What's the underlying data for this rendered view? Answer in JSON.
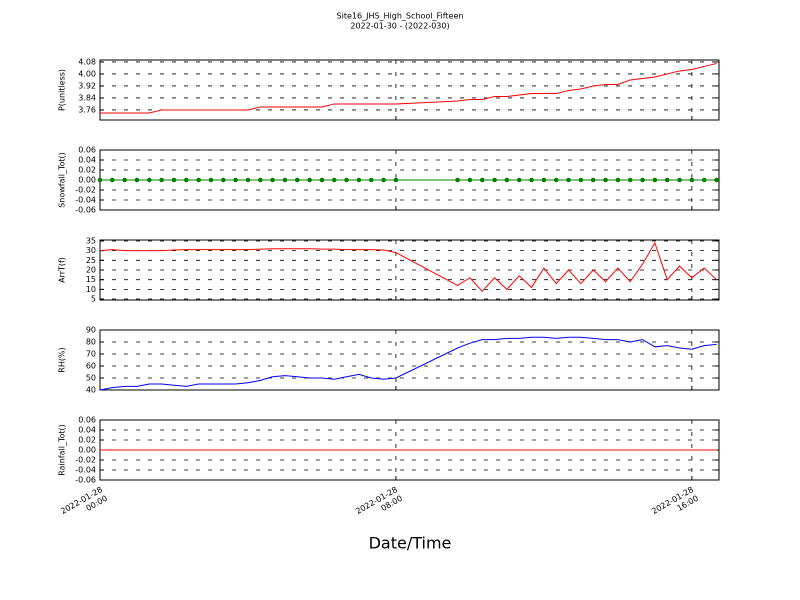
{
  "chart_data": {
    "type": "multi-panel",
    "title": "Site16_JHS_High_School_Fifteen",
    "subtitle": "2022-01-30 - (2022-030)",
    "xlabel": "Date/Time",
    "x": [
      "2022-01-28 00:00",
      "2022-01-28 00:20",
      "2022-01-28 00:40",
      "2022-01-28 01:00",
      "2022-01-28 01:20",
      "2022-01-28 01:40",
      "2022-01-28 02:00",
      "2022-01-28 02:20",
      "2022-01-28 02:40",
      "2022-01-28 03:00",
      "2022-01-28 03:20",
      "2022-01-28 03:40",
      "2022-01-28 04:00",
      "2022-01-28 04:20",
      "2022-01-28 04:40",
      "2022-01-28 05:00",
      "2022-01-28 05:20",
      "2022-01-28 05:40",
      "2022-01-28 06:00",
      "2022-01-28 06:20",
      "2022-01-28 06:40",
      "2022-01-28 07:00",
      "2022-01-28 07:20",
      "2022-01-28 07:40",
      "2022-01-28 08:00",
      "2022-01-28 09:40",
      "2022-01-28 10:00",
      "2022-01-28 10:20",
      "2022-01-28 10:40",
      "2022-01-28 11:00",
      "2022-01-28 11:20",
      "2022-01-28 11:40",
      "2022-01-28 12:00",
      "2022-01-28 12:20",
      "2022-01-28 12:40",
      "2022-01-28 13:00",
      "2022-01-28 13:20",
      "2022-01-28 13:40",
      "2022-01-28 14:00",
      "2022-01-28 14:20",
      "2022-01-28 14:40",
      "2022-01-28 15:00",
      "2022-01-28 15:20",
      "2022-01-28 15:40",
      "2022-01-28 16:00",
      "2022-01-28 16:20",
      "2022-01-28 16:40"
    ],
    "xlim": [
      "2022-01-28 00:00",
      "2022-01-28 16:44"
    ],
    "xticks": [
      {
        "value": "2022-01-28 00:00",
        "label": "2022-01-28\n00:00"
      },
      {
        "value": "2022-01-28 08:00",
        "label": "2022-01-28\n08:00"
      },
      {
        "value": "2022-01-28 16:00",
        "label": "2022-01-28\n16:00"
      }
    ],
    "grid": true,
    "subplots": [
      {
        "type": "line",
        "ylabel": "P(unitless)",
        "color": "#ff0000",
        "marker": false,
        "ylim": [
          3.693,
          4.093
        ],
        "yticks": [
          3.76,
          3.84,
          3.92,
          {
            "value": 4,
            "label": "4.00"
          },
          4.08
        ],
        "values": [
          3.74,
          3.74,
          3.74,
          3.74,
          3.74,
          3.76,
          3.76,
          3.76,
          3.76,
          3.76,
          3.76,
          3.76,
          3.76,
          3.78,
          3.78,
          3.78,
          3.78,
          3.78,
          3.78,
          3.8,
          3.8,
          3.8,
          3.8,
          3.8,
          3.8,
          3.82,
          3.83,
          3.83,
          3.85,
          3.85,
          3.86,
          3.87,
          3.87,
          3.87,
          3.89,
          3.9,
          3.92,
          3.93,
          3.93,
          3.96,
          3.97,
          3.98,
          4.0,
          4.02,
          4.03,
          4.05,
          4.07
        ]
      },
      {
        "type": "line",
        "ylabel": "Snowfall_Tot()",
        "color": "#008000",
        "marker": true,
        "ylim": [
          -0.06,
          0.06
        ],
        "yticks": [
          -0.06,
          -0.04,
          -0.02,
          {
            "value": 0,
            "label": "0.00"
          },
          0.02,
          0.04,
          0.06
        ],
        "values": [
          0,
          0,
          0,
          0,
          0,
          0,
          0,
          0,
          0,
          0,
          0,
          0,
          0,
          0,
          0,
          0,
          0,
          0,
          0,
          0,
          0,
          0,
          0,
          0,
          0,
          0,
          0,
          0,
          0,
          0,
          0,
          0,
          0,
          0,
          0,
          0,
          0,
          0,
          0,
          0,
          0,
          0,
          0,
          0,
          0,
          0,
          0
        ]
      },
      {
        "type": "line",
        "ylabel": "ArrT(f)",
        "color": "#ff0000",
        "marker": false,
        "ylim": [
          4.5,
          35.5
        ],
        "yticks": [
          5,
          10,
          15,
          20,
          25,
          30,
          35
        ],
        "values": [
          30,
          30.5,
          30,
          30,
          30,
          30,
          30.3,
          30.5,
          30.5,
          30.5,
          30.5,
          30.5,
          30.5,
          30.8,
          31,
          31,
          31,
          31,
          30.8,
          30.8,
          30.5,
          30.5,
          30.5,
          30.3,
          29,
          12,
          16,
          9,
          16,
          10,
          17,
          11,
          21,
          13,
          20,
          13,
          20,
          14,
          21,
          14,
          23,
          34,
          15,
          22,
          16,
          21,
          15
        ]
      },
      {
        "type": "line",
        "ylabel": "RH(%)",
        "color": "#0000ff",
        "marker": false,
        "ylim": [
          40,
          90
        ],
        "yticks": [
          40,
          50,
          60,
          70,
          80,
          90
        ],
        "values": [
          40,
          42,
          43,
          43,
          45,
          45,
          44,
          43,
          45,
          45,
          45,
          45,
          46,
          48,
          51,
          52,
          51,
          50,
          50,
          49,
          51,
          53,
          50,
          49,
          50,
          75,
          79,
          82,
          82,
          83,
          83,
          84,
          84,
          83,
          84,
          84,
          83,
          82,
          82,
          80,
          82,
          76,
          77,
          75,
          74,
          77,
          78
        ]
      },
      {
        "type": "line",
        "ylabel": "Rainfall_Tot()",
        "color": "#ff0000",
        "marker": false,
        "ylim": [
          -0.06,
          0.06
        ],
        "yticks": [
          -0.06,
          -0.04,
          -0.02,
          {
            "value": 0,
            "label": "0.00"
          },
          0.02,
          0.04,
          0.06
        ],
        "values": [
          0,
          0,
          0,
          0,
          0,
          0,
          0,
          0,
          0,
          0,
          0,
          0,
          0,
          0,
          0,
          0,
          0,
          0,
          0,
          0,
          0,
          0,
          0,
          0,
          0,
          0,
          0,
          0,
          0,
          0,
          0,
          0,
          0,
          0,
          0,
          0,
          0,
          0,
          0,
          0,
          0,
          0,
          0,
          0,
          0,
          0,
          0
        ]
      }
    ]
  }
}
